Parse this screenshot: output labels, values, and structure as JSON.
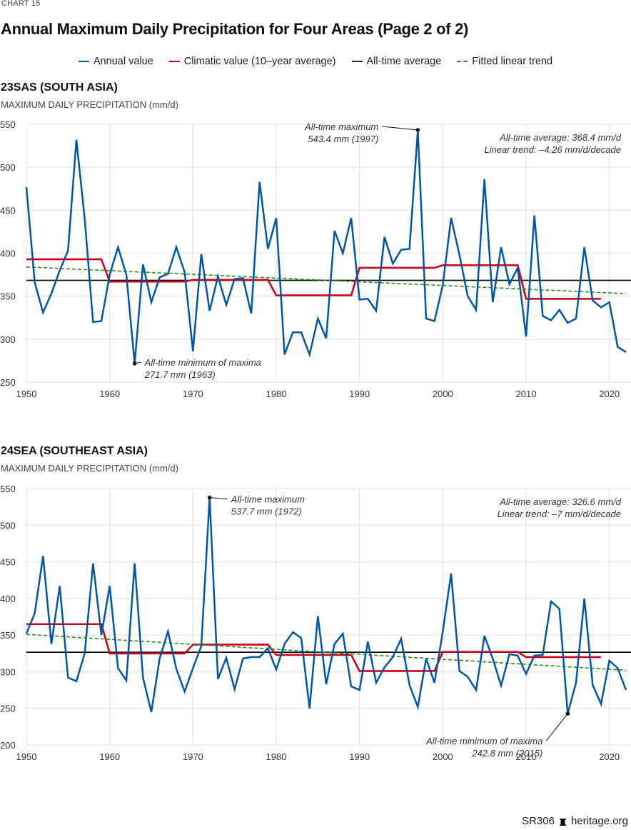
{
  "header": {
    "chart_label": "CHART 15",
    "title": "Annual Maximum Daily Precipitation for Four Areas (Page 2 of 2)"
  },
  "legend": [
    {
      "label": "Annual value",
      "color": "#0057a8",
      "style": "solid"
    },
    {
      "label": "Climatic value (10–year average)",
      "color": "#d0021b",
      "style": "solid"
    },
    {
      "label": "All-time average",
      "color": "#1a2a4a",
      "style": "solid"
    },
    {
      "label": "Fitted linear trend",
      "color": "#2e8b13",
      "style": "dashed"
    }
  ],
  "footer": {
    "code": "SR306",
    "icon": "liberty-bell-icon",
    "site": "heritage.org"
  },
  "chart_data": [
    {
      "type": "line",
      "panel_title": "23SAS (SOUTH ASIA)",
      "ylabel": "MAXIMUM DAILY PRECIPITATION (mm/d)",
      "xlim": [
        1950,
        2022
      ],
      "ylim": [
        250,
        550
      ],
      "xticks": [
        1950,
        1960,
        1970,
        1980,
        1990,
        2000,
        2010,
        2020
      ],
      "yticks": [
        250,
        300,
        350,
        400,
        450,
        500,
        550
      ],
      "grid": true,
      "x_start": 1950,
      "series": [
        {
          "name": "Annual value",
          "values": [
            477,
            366,
            331,
            353,
            380,
            403,
            532,
            440,
            320,
            321,
            375,
            407,
            375,
            271.7,
            387,
            343,
            372,
            376,
            407,
            378,
            286,
            399,
            333,
            373,
            340,
            370,
            371,
            330,
            483,
            405,
            441,
            282,
            308,
            308,
            282,
            324,
            301,
            426,
            400,
            441,
            346,
            347,
            333,
            419,
            388,
            404,
            405,
            543.4,
            324,
            321,
            363,
            441,
            398,
            350,
            334,
            486,
            343,
            407,
            364,
            383,
            303,
            444,
            327,
            322,
            334,
            319,
            324,
            407,
            345,
            337,
            343,
            291,
            285
          ]
        },
        {
          "name": "Climatic value (10–year average)",
          "segments": [
            {
              "from": 1950,
              "to": 1959,
              "value": 393
            },
            {
              "from": 1960,
              "to": 1969,
              "value": 367
            },
            {
              "from": 1970,
              "to": 1979,
              "value": 369
            },
            {
              "from": 1980,
              "to": 1989,
              "value": 351
            },
            {
              "from": 1990,
              "to": 1999,
              "value": 383
            },
            {
              "from": 2000,
              "to": 2009,
              "value": 386
            },
            {
              "from": 2010,
              "to": 2019,
              "value": 347
            }
          ]
        },
        {
          "name": "All-time average",
          "value": 368.4
        },
        {
          "name": "Fitted linear trend",
          "start": [
            1950,
            384
          ],
          "end": [
            2022,
            353
          ]
        }
      ],
      "annotations": [
        {
          "id": "max",
          "lines": [
            "All-time maximum",
            "543.4 mm (1997)"
          ],
          "x": 1997,
          "y": 543.4
        },
        {
          "id": "min",
          "lines": [
            "All-time minimum of maxima",
            "271.7 mm (1963)"
          ],
          "x": 1963,
          "y": 271.7
        },
        {
          "id": "stats",
          "lines": [
            "All-time average: 368.4 mm/d",
            "Linear trend: –4.26 mm/d/decade"
          ]
        }
      ]
    },
    {
      "type": "line",
      "panel_title": "24SEA (SOUTHEAST ASIA)",
      "ylabel": "MAXIMUM DAILY PRECIPITATION (mm/d)",
      "xlim": [
        1950,
        2022
      ],
      "ylim": [
        200,
        550
      ],
      "xticks": [
        1950,
        1960,
        1970,
        1980,
        1990,
        2000,
        2010,
        2020
      ],
      "yticks": [
        200,
        250,
        300,
        350,
        400,
        450,
        500,
        550
      ],
      "grid": true,
      "x_start": 1950,
      "series": [
        {
          "name": "Annual value",
          "values": [
            352,
            380,
            458,
            338,
            417,
            292,
            287,
            325,
            448,
            350,
            417,
            305,
            288,
            448,
            292,
            245,
            318,
            355,
            304,
            273,
            305,
            335,
            537.7,
            290,
            319,
            276,
            318,
            320,
            320,
            332,
            303,
            338,
            354,
            346,
            250,
            376,
            283,
            338,
            352,
            280,
            275,
            341,
            285,
            306,
            320,
            345,
            282,
            252,
            318,
            285,
            355,
            434,
            301,
            293,
            275,
            349,
            318,
            281,
            324,
            322,
            297,
            322,
            323,
            396,
            386,
            242.8,
            285,
            400,
            282,
            256,
            315,
            305,
            275
          ]
        },
        {
          "name": "Climatic value (10–year average)",
          "segments": [
            {
              "from": 1950,
              "to": 1959,
              "value": 365
            },
            {
              "from": 1960,
              "to": 1969,
              "value": 325
            },
            {
              "from": 1970,
              "to": 1979,
              "value": 337
            },
            {
              "from": 1980,
              "to": 1989,
              "value": 323
            },
            {
              "from": 1990,
              "to": 1999,
              "value": 301
            },
            {
              "from": 2000,
              "to": 2009,
              "value": 327
            },
            {
              "from": 2010,
              "to": 2019,
              "value": 320
            }
          ]
        },
        {
          "name": "All-time average",
          "value": 326.6
        },
        {
          "name": "Fitted linear trend",
          "start": [
            1950,
            351
          ],
          "end": [
            2022,
            302
          ]
        }
      ],
      "annotations": [
        {
          "id": "max",
          "lines": [
            "All-time maximum",
            "537.7 mm (1972)"
          ],
          "x": 1972,
          "y": 537.7
        },
        {
          "id": "min",
          "lines": [
            "All-time minimum of maxima",
            "242.8 mm (2015)"
          ],
          "x": 2015,
          "y": 242.8
        },
        {
          "id": "stats",
          "lines": [
            "All-time average: 326.6 mm/d",
            "Linear trend: –7 mm/d/decade"
          ]
        }
      ]
    }
  ]
}
